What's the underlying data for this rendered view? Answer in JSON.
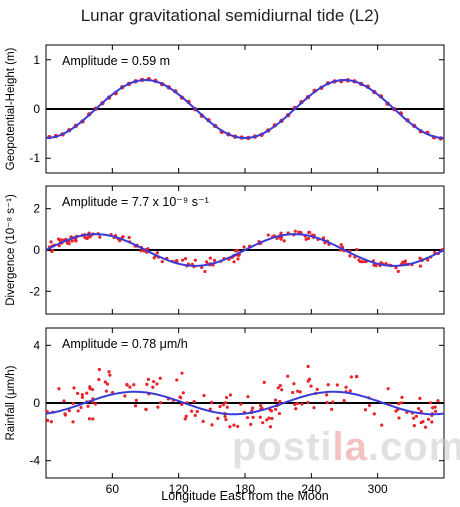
{
  "title": "Lunar gravitational semidiurnal tide (L2)",
  "xlabel": "Longitude East from the Moon",
  "watermark": {
    "prefix": "posti",
    "accent": "la",
    "suffix": ".com"
  },
  "colors": {
    "observed": "#e8242a",
    "fit": "#3b3bd6",
    "zero_line": "#000000"
  },
  "chart_data": [
    {
      "type": "scatter",
      "panel": "top",
      "ylabel": "Geopotential-Height (m)",
      "annotation": "Amplitude = 0.59 m",
      "ylim": [
        -1.3,
        1.3
      ],
      "yticks": [
        -1,
        0,
        1
      ],
      "xlim": [
        0,
        360
      ],
      "xticks": [
        60,
        120,
        180,
        240,
        300
      ],
      "amplitude": 0.59,
      "phase_max_longitude": [
        90,
        270
      ],
      "series": [
        {
          "kind": "points",
          "spread": 0.02
        },
        {
          "kind": "line"
        }
      ]
    },
    {
      "type": "scatter",
      "panel": "middle",
      "ylabel": "Divergence (10⁻⁸ s⁻¹)",
      "annotation": "Amplitude = 7.7 x 10⁻⁹ s⁻¹",
      "ylim": [
        -3.1,
        3.1
      ],
      "yticks": [
        -2,
        0,
        2
      ],
      "xlim": [
        0,
        360
      ],
      "xticks": [
        60,
        120,
        180,
        240,
        300
      ],
      "amplitude": 0.77,
      "phase_max_longitude": [
        45,
        225
      ],
      "series": [
        {
          "kind": "points",
          "spread": 0.18
        },
        {
          "kind": "line"
        }
      ]
    },
    {
      "type": "scatter",
      "panel": "bottom",
      "ylabel": "Rainfall (μm/h)",
      "annotation": "Amplitude = 0.78 μm/h",
      "ylim": [
        -5.2,
        5.2
      ],
      "yticks": [
        -4,
        0,
        4
      ],
      "xlim": [
        0,
        360
      ],
      "xticks": [
        60,
        120,
        180,
        240,
        300
      ],
      "xticklabels": [
        "60",
        "120",
        "180",
        "240",
        "300"
      ],
      "amplitude": 0.78,
      "phase_max_longitude": [
        80,
        260
      ],
      "series": [
        {
          "kind": "points",
          "spread": 0.75
        },
        {
          "kind": "line"
        }
      ]
    }
  ]
}
